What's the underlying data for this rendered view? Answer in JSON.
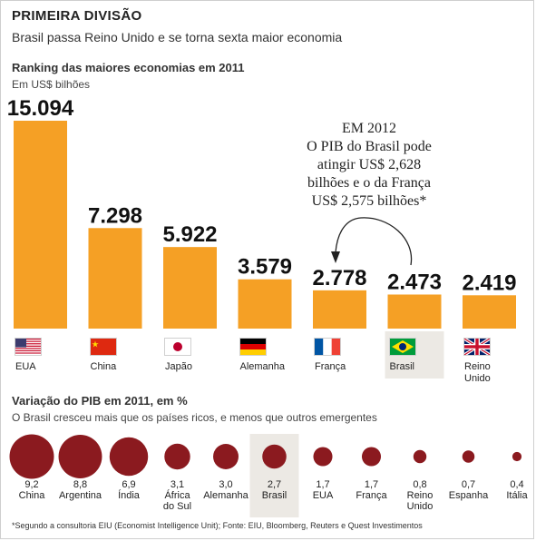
{
  "header": {
    "title": "PRIMEIRA DIVISÃO",
    "subtitle": "Brasil passa Reino Unido e se torna sexta maior economia"
  },
  "ranking": {
    "title": "Ranking das maiores economias em 2011",
    "unit": "Em US$ bilhões"
  },
  "annotation": {
    "lines": [
      "EM 2012",
      "O PIB do Brasil pode",
      "atingir US$ 2,628",
      "bilhões e o da França",
      "US$ 2,575 bilhões*"
    ]
  },
  "growth": {
    "title": "Variação do PIB em 2011, em %",
    "note": "O Brasil cresceu mais que os países ricos, e menos que outros emergentes"
  },
  "footnote": "*Segundo a consultoria EIU (Economist Intelligence Unit); Fonte: EIU, Bloomberg, Reuters e Quest Investimentos",
  "colors": {
    "bar": "#f5a025",
    "bubble": "#8b1a1f",
    "highlight": "#ece9e4"
  },
  "chart_data": [
    {
      "type": "bar",
      "title": "Ranking das maiores economias em 2011",
      "ylabel": "Em US$ bilhões",
      "categories": [
        "EUA",
        "China",
        "Japão",
        "Alemanha",
        "França",
        "Brasil",
        "Reino Unido"
      ],
      "values": [
        15094,
        7298,
        5922,
        3579,
        2778,
        2473,
        2419
      ],
      "value_labels": [
        "15.094",
        "7.298",
        "5.922",
        "3.579",
        "2.778",
        "2.473",
        "2.419"
      ],
      "flags": [
        "usa-flag",
        "china-flag",
        "japan-flag",
        "germany-flag",
        "france-flag",
        "brazil-flag",
        "uk-flag"
      ],
      "highlight": "Brasil"
    },
    {
      "type": "scatter",
      "title": "Variação do PIB em 2011, em %",
      "categories": [
        "China",
        "Argentina",
        "Índia",
        "África do Sul",
        "Alemanha",
        "Brasil",
        "EUA",
        "França",
        "Reino Unido",
        "Espanha",
        "Itália"
      ],
      "values": [
        9.2,
        8.8,
        6.9,
        3.1,
        3.0,
        2.7,
        1.7,
        1.7,
        0.8,
        0.7,
        0.4
      ],
      "value_labels": [
        "9,2",
        "8,8",
        "6,9",
        "3,1",
        "3,0",
        "2,7",
        "1,7",
        "1,7",
        "0,8",
        "0,7",
        "0,4"
      ],
      "name_lines": [
        [
          "China"
        ],
        [
          "Argentina"
        ],
        [
          "Índia"
        ],
        [
          "África",
          "do Sul"
        ],
        [
          "Alemanha"
        ],
        [
          "Brasil"
        ],
        [
          "EUA"
        ],
        [
          "França"
        ],
        [
          "Reino",
          "Unido"
        ],
        [
          "Espanha"
        ],
        [
          "Itália"
        ]
      ],
      "highlight": "Brasil"
    }
  ]
}
